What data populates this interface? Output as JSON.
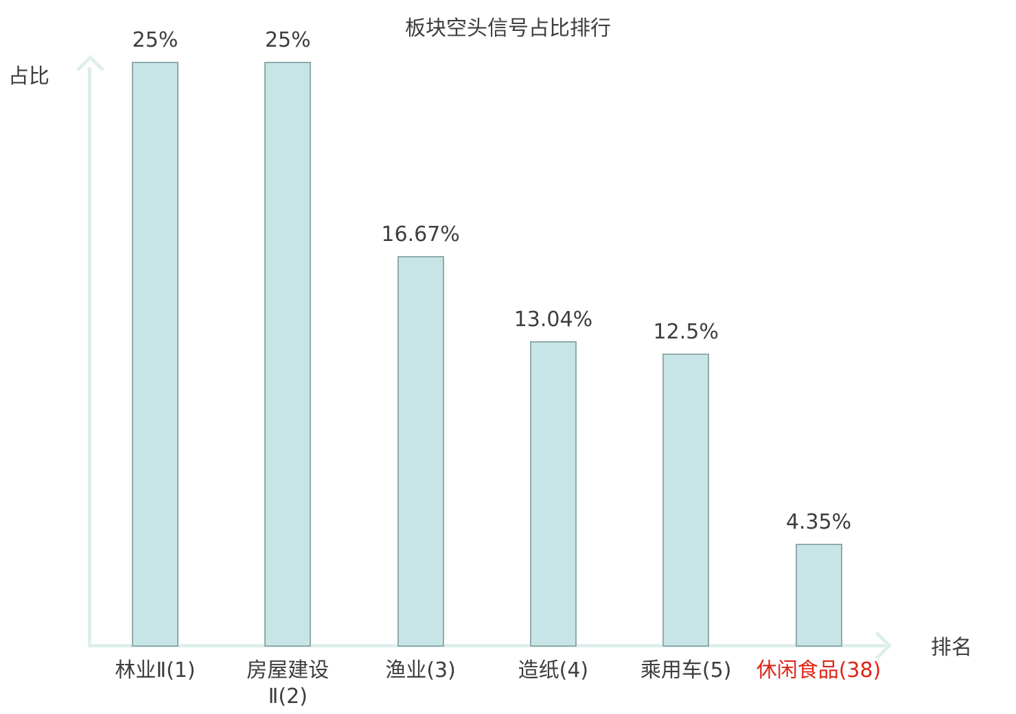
{
  "chart_data": {
    "type": "bar",
    "title": "板块空头信号占比排行",
    "xlabel": "排名",
    "ylabel": "占比",
    "ylim": [
      0,
      25
    ],
    "grid": false,
    "legend": "none",
    "categories": [
      "林业Ⅱ(1)",
      "房屋建设\nⅡ(2)",
      "渔业(3)",
      "造纸(4)",
      "乘用车(5)",
      "休闲食品(38)"
    ],
    "values": [
      25,
      25,
      16.67,
      13.04,
      12.5,
      4.35
    ],
    "value_labels": [
      "25%",
      "25%",
      "16.67%",
      "13.04%",
      "12.5%",
      "4.35%"
    ],
    "highlight_index": 5,
    "colors": {
      "bar_fill": "#c7e4e7",
      "bar_border": "#8fa9ab",
      "axis": "#ddefec",
      "text": "#3d3d3d",
      "highlight": "#e02417"
    }
  }
}
